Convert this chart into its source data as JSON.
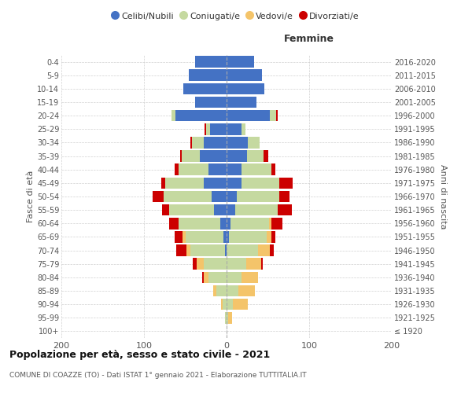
{
  "age_groups": [
    "100+",
    "95-99",
    "90-94",
    "85-89",
    "80-84",
    "75-79",
    "70-74",
    "65-69",
    "60-64",
    "55-59",
    "50-54",
    "45-49",
    "40-44",
    "35-39",
    "30-34",
    "25-29",
    "20-24",
    "15-19",
    "10-14",
    "5-9",
    "0-4"
  ],
  "birth_years": [
    "≤ 1920",
    "1921-1925",
    "1926-1930",
    "1931-1935",
    "1936-1940",
    "1941-1945",
    "1946-1950",
    "1951-1955",
    "1956-1960",
    "1961-1965",
    "1966-1970",
    "1971-1975",
    "1976-1980",
    "1981-1985",
    "1986-1990",
    "1991-1995",
    "1996-2000",
    "2001-2005",
    "2006-2010",
    "2011-2015",
    "2016-2020"
  ],
  "male": {
    "celibi": [
      0,
      0,
      0,
      0,
      0,
      0,
      2,
      4,
      8,
      15,
      18,
      28,
      22,
      32,
      28,
      20,
      62,
      38,
      52,
      46,
      38
    ],
    "coniugati": [
      0,
      2,
      5,
      12,
      22,
      28,
      42,
      46,
      50,
      55,
      58,
      46,
      36,
      22,
      14,
      5,
      5,
      0,
      0,
      0,
      0
    ],
    "vedovi": [
      0,
      0,
      2,
      4,
      6,
      8,
      5,
      3,
      0,
      0,
      0,
      0,
      0,
      0,
      0,
      0,
      0,
      0,
      0,
      0,
      0
    ],
    "divorziati": [
      0,
      0,
      0,
      0,
      2,
      5,
      12,
      10,
      12,
      8,
      14,
      5,
      5,
      2,
      2,
      2,
      0,
      0,
      0,
      0,
      0
    ]
  },
  "female": {
    "nubili": [
      0,
      0,
      0,
      0,
      0,
      0,
      0,
      3,
      5,
      10,
      12,
      18,
      18,
      25,
      26,
      18,
      52,
      36,
      46,
      43,
      33
    ],
    "coniugate": [
      0,
      2,
      8,
      14,
      18,
      24,
      38,
      46,
      46,
      52,
      52,
      46,
      36,
      20,
      14,
      5,
      8,
      0,
      0,
      0,
      0
    ],
    "vedove": [
      0,
      5,
      18,
      20,
      20,
      18,
      14,
      5,
      3,
      0,
      0,
      0,
      0,
      0,
      0,
      0,
      0,
      0,
      0,
      0,
      0
    ],
    "divorziate": [
      0,
      0,
      0,
      0,
      0,
      2,
      5,
      5,
      14,
      17,
      12,
      16,
      5,
      5,
      0,
      0,
      2,
      0,
      0,
      0,
      0
    ]
  },
  "color_celibi": "#4472C4",
  "color_coniugati": "#C5D9A0",
  "color_vedovi": "#F4C46A",
  "color_divorziati": "#CC0000",
  "title_main": "Popolazione per età, sesso e stato civile - 2021",
  "title_sub": "COMUNE DI COAZZE (TO) - Dati ISTAT 1° gennaio 2021 - Elaborazione TUTTITALIA.IT",
  "xlabel_right": "Femmine",
  "ylabel_left": "Fasce di età",
  "ylabel_right": "Anni di nascita",
  "xlim": 200,
  "background_color": "#ffffff",
  "grid_color": "#cccccc",
  "legend_labels": [
    "Celibi/Nubili",
    "Coniugati/e",
    "Vedovi/e",
    "Divorziati/e"
  ]
}
